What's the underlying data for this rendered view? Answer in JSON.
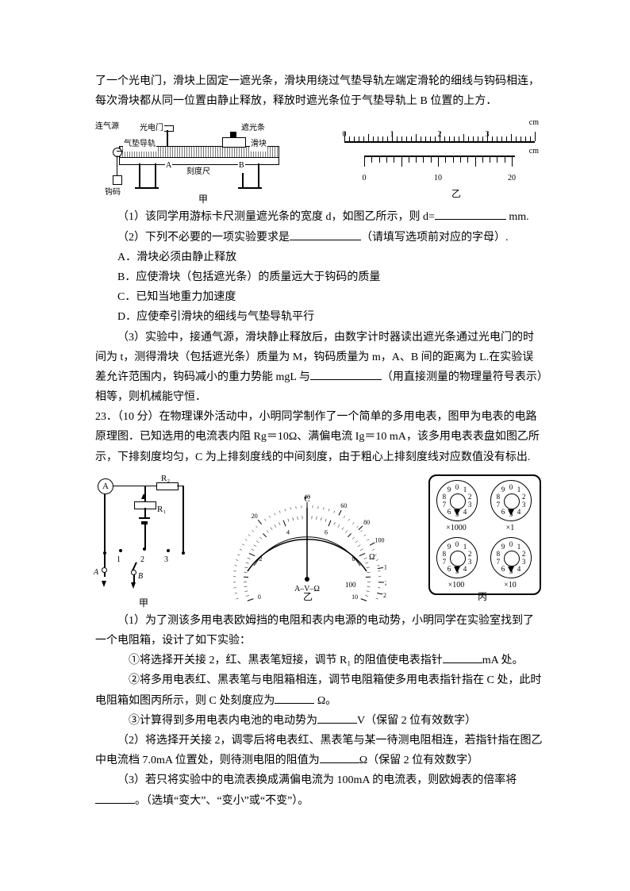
{
  "intro": {
    "line1": "了一个光电门，滑块上固定一遮光条，滑块用绕过气垫导轨左端定滑轮的细线与钩码相连，每次滑块都从同一位置由静止释放，释放时遮光条位于气垫导轨上 B 位置的上方．"
  },
  "fig1": {
    "airtrack_label": "气垫导轨",
    "gate_label": "光电门",
    "flag_label": "遮光条",
    "block_label": "滑块",
    "ruler_label": "刻度尺",
    "source_label": "连气源",
    "weight_label": "钩码",
    "A": "A",
    "B": "B",
    "jia": "甲",
    "vernier_main_labels": [
      "0",
      "1",
      "2",
      "3"
    ],
    "vernier_sub_labels": [
      "0",
      "10",
      "20"
    ],
    "cm": "cm",
    "yi": "乙"
  },
  "q1": "（1）该同学用游标卡尺测量遮光条的宽度 d，如图乙所示，则 d=",
  "q1_unit": " mm.",
  "q2": "（2）下列不必要的一项实验要求是",
  "q2_tail": "（请填写选项前对应的字母）.",
  "optA": "A．滑块必须由静止释放",
  "optB": "B．应使滑块（包括遮光条）的质量远大于钩码的质量",
  "optC": "C．已知当地重力加速度",
  "optD": "D．应使牵引滑块的细线与气垫导轨平行",
  "q3a": "（3）实验中，接通气源，滑块静止释放后，由数字计时器读出遮光条通过光电门的时间为 t，测得滑块（包括遮光条）质量为 M，钩码质量为 m，A、B 间的距离为 L.在实验误差允许范围内，钩码减小的重力势能 mgL 与",
  "q3b": "（用直接测量的物理量符号表示）相等，则机械能守恒．",
  "p23_head": "23．（10 分）在物理课外活动中，小明同学制作了一个简单的多用电表，图甲为电表的电路原理图．已知选用的电流表内阻 Rg＝10Ω、满偏电流 Ig＝10 mA，该多用电表表盘如图乙所示，下排刻度均匀，C 为上排刻度线的中间刻度，由于粗心上排刻度线对应数值没有标出.",
  "circuit": {
    "A": "A",
    "R1": "R₁",
    "R2": "R₂",
    "n1": "1",
    "n2": "2",
    "n3": "3",
    "Alab": "A",
    "Blab": "B",
    "jia": "甲"
  },
  "dial": {
    "C": "C",
    "main_nums": [
      "0",
      "20",
      "40",
      "60",
      "80",
      "100",
      "150",
      "200",
      "250"
    ],
    "unit_top": "Ω",
    "bottom_nums": [
      "0",
      "2",
      "4",
      "6",
      "8",
      "10"
    ],
    "bottom_label": "A–V–Ω",
    "right_small": "100",
    "yi": "乙"
  },
  "box": {
    "mults": [
      "×1000",
      "×1",
      "×100",
      "×10"
    ],
    "digits": [
      "0",
      "1",
      "2",
      "3",
      "4",
      "5",
      "6",
      "7",
      "8",
      "9"
    ],
    "bing": "丙"
  },
  "p23_1": "（1）为了测该多用电表欧姆挡的电阻和表内电源的电动势，小明同学在实验室找到了一个电阻箱，设计了如下实验：",
  "p23_1_1a": "①将选择开关接 2，红、黑表笔短接，调节 R₁ 的阻值使电表指针",
  "p23_1_1b": "mA 处。",
  "p23_1_2a": "②将多用电表红、黑表笔与电阻箱相连，调节电阻箱使多用电表指针指在 C 处，此时电阻箱如图丙所示，则 C 处刻度应为",
  "p23_1_2b": " Ω。",
  "p23_1_3a": "③计算得到多用电表内电池的电动势为",
  "p23_1_3b": "V（保留 2 位有效数字）",
  "p23_2a": "（2）将选择开关接 2，调零后将电表红、黑表笔与某一待测电阻相连，若指针指在图乙中电流档 7.0mA 位置处，则待测电阻的阻值为",
  "p23_2b": "Ω（保留 2 位有效数字）",
  "p23_3a": "（3）若只将实验中的电流表换成满偏电流为 100mA 的电流表，则欧姆表的倍率将",
  "p23_3b": "。（选填“变大”、“变小”或“不变”）。"
}
